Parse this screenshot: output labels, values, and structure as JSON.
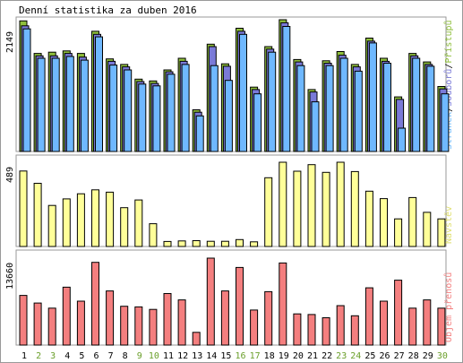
{
  "title": "Denní statistika za duben 2016",
  "colors": {
    "hits": "#8fbf3c",
    "files": "#7a7ad8",
    "pages": "#6fb8ff",
    "visits": "#ffff99",
    "kbytes": "#f47f7f",
    "weekend": "#6a9f2a",
    "weekday": "#000000",
    "frame": "#999999"
  },
  "chart_data": [
    {
      "type": "bar",
      "panel": "top",
      "max_label": "2149",
      "ylim": [
        0,
        2149
      ],
      "legend": {
        "hits_label": "Přístupů",
        "files_label": "Souborů",
        "pages_label": "Stránek",
        "separator": "/"
      },
      "categories": [
        "1",
        "2",
        "3",
        "4",
        "5",
        "6",
        "7",
        "8",
        "9",
        "10",
        "11",
        "12",
        "13",
        "14",
        "15",
        "16",
        "17",
        "18",
        "19",
        "20",
        "21",
        "22",
        "23",
        "24",
        "25",
        "26",
        "27",
        "28",
        "29",
        "30"
      ],
      "series": [
        {
          "name": "Přístupů",
          "values": [
            2130,
            1600,
            1620,
            1640,
            1600,
            1960,
            1510,
            1420,
            1180,
            1150,
            1330,
            1520,
            680,
            1750,
            1430,
            2010,
            1050,
            1710,
            2149,
            1500,
            1010,
            1480,
            1630,
            1420,
            1850,
            1520,
            890,
            1600,
            1460,
            1060
          ]
        },
        {
          "name": "Souborů",
          "values": [
            2050,
            1560,
            1560,
            1600,
            1540,
            1910,
            1470,
            1380,
            1140,
            1110,
            1300,
            1470,
            640,
            1710,
            1390,
            1960,
            1010,
            1670,
            2100,
            1460,
            970,
            1440,
            1570,
            1380,
            1800,
            1470,
            850,
            1560,
            1420,
            1020
          ]
        },
        {
          "name": "Stránek",
          "values": [
            2000,
            1520,
            1520,
            1550,
            1490,
            1870,
            1410,
            1330,
            1100,
            1070,
            1260,
            1420,
            580,
            1400,
            1160,
            1910,
            940,
            1620,
            2040,
            1400,
            810,
            1400,
            1520,
            1310,
            1770,
            1440,
            380,
            1520,
            1390,
            940
          ]
        }
      ]
    },
    {
      "type": "bar",
      "panel": "middle",
      "max_label": "489",
      "ylim": [
        0,
        489
      ],
      "legend": {
        "label": "Návštěv"
      },
      "categories": [
        "1",
        "2",
        "3",
        "4",
        "5",
        "6",
        "7",
        "8",
        "9",
        "10",
        "11",
        "12",
        "13",
        "14",
        "15",
        "16",
        "17",
        "18",
        "19",
        "20",
        "21",
        "22",
        "23",
        "24",
        "25",
        "26",
        "27",
        "28",
        "29",
        "30"
      ],
      "series": [
        {
          "name": "Návštěv",
          "values": [
            438,
            367,
            238,
            276,
            306,
            329,
            315,
            225,
            270,
            132,
            29,
            32,
            34,
            30,
            30,
            40,
            27,
            399,
            489,
            437,
            475,
            430,
            489,
            435,
            321,
            278,
            160,
            284,
            198,
            160
          ]
        }
      ]
    },
    {
      "type": "bar",
      "panel": "bottom",
      "max_label": "13660",
      "ylim": [
        0,
        13660
      ],
      "legend": {
        "label": "Objem přenosů"
      },
      "categories": [
        "1",
        "2",
        "3",
        "4",
        "5",
        "6",
        "7",
        "8",
        "9",
        "10",
        "11",
        "12",
        "13",
        "14",
        "15",
        "16",
        "17",
        "18",
        "19",
        "20",
        "21",
        "22",
        "23",
        "24",
        "25",
        "26",
        "27",
        "28",
        "29",
        "30"
      ],
      "series": [
        {
          "name": "Objem přenosů",
          "values": [
            7800,
            6600,
            5800,
            9100,
            6900,
            13000,
            8500,
            6100,
            6000,
            5600,
            8100,
            7100,
            2000,
            13660,
            8500,
            12200,
            5500,
            8400,
            12900,
            4900,
            4800,
            4300,
            6200,
            4600,
            9000,
            6900,
            10200,
            5800,
            7100,
            5800
          ]
        }
      ]
    }
  ],
  "weekend_days": [
    2,
    3,
    9,
    10,
    16,
    17,
    23,
    24,
    30
  ]
}
